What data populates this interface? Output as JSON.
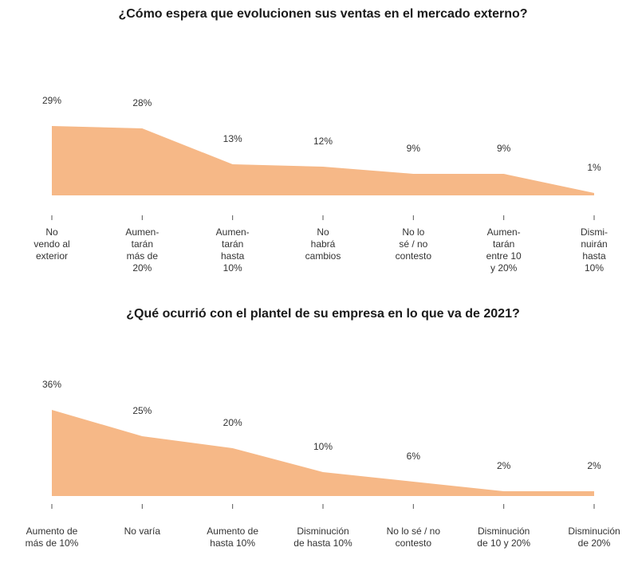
{
  "chart_data": [
    {
      "type": "area",
      "title": "¿Cómo espera que evolucionen sus ventas en el mercado externo?",
      "categories": [
        [
          "No",
          "vendo al",
          "exterior"
        ],
        [
          "Aumen-",
          "tarán",
          "más de",
          "20%"
        ],
        [
          "Aumen-",
          "tarán",
          "hasta",
          "10%"
        ],
        [
          "No",
          "habrá",
          "cambios"
        ],
        [
          "No lo",
          "sé / no",
          "contesto"
        ],
        [
          "Aumen-",
          "tarán",
          "entre 10",
          "y 20%"
        ],
        [
          "Dismi-",
          "nuirán",
          "hasta",
          "10%"
        ]
      ],
      "values": [
        29,
        28,
        13,
        12,
        9,
        9,
        1
      ],
      "value_labels": [
        "29%",
        "28%",
        "13%",
        "12%",
        "9%",
        "9%",
        "1%"
      ],
      "color": "#f6b887"
    },
    {
      "type": "area",
      "title": "¿Qué ocurrió con el plantel de su empresa en lo que va de 2021?",
      "categories": [
        [
          "Aumento de",
          "más de 10%"
        ],
        [
          "No varía"
        ],
        [
          "Aumento de",
          "hasta 10%"
        ],
        [
          "Disminución",
          "de hasta 10%"
        ],
        [
          "No lo sé / no",
          "contesto"
        ],
        [
          "Disminución",
          "de 10 y 20%"
        ],
        [
          "Disminución",
          "de 20%"
        ]
      ],
      "values": [
        36,
        25,
        20,
        10,
        6,
        2,
        2
      ],
      "value_labels": [
        "36%",
        "25%",
        "20%",
        "10%",
        "6%",
        "2%",
        "2%"
      ],
      "color": "#f6b887"
    }
  ]
}
